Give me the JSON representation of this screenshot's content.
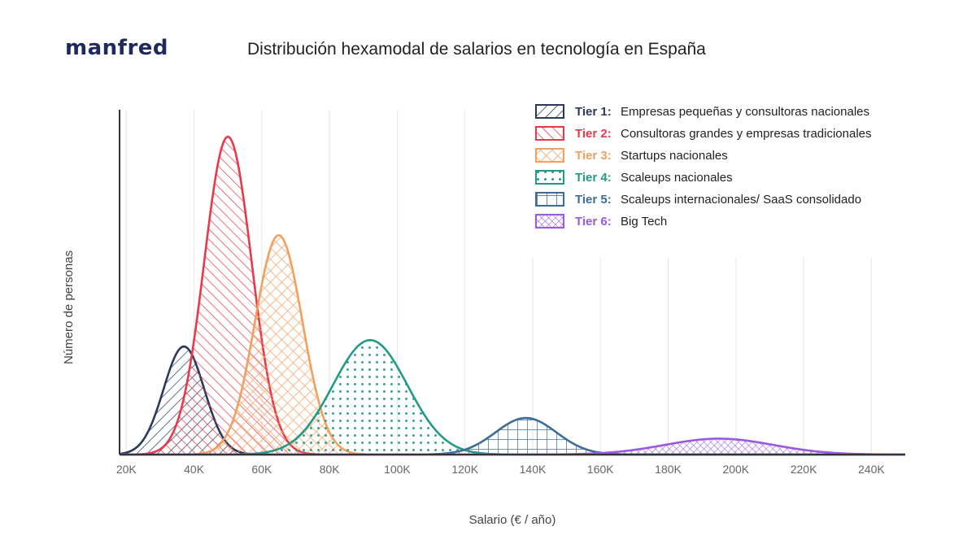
{
  "brand": {
    "logo_text": "manfred"
  },
  "chart_data": {
    "type": "area",
    "title": "Distribución hexamodal de salarios en tecnología en España",
    "xlabel": "Salario (€ / año)",
    "ylabel": "Número de personas",
    "xlim": [
      18000,
      250000
    ],
    "ylim": [
      0,
      100
    ],
    "x_ticks": [
      20000,
      40000,
      60000,
      80000,
      100000,
      120000,
      140000,
      160000,
      180000,
      200000,
      220000,
      240000
    ],
    "x_tick_labels": [
      "20K",
      "40K",
      "60K",
      "80K",
      "100K",
      "120K",
      "140K",
      "160K",
      "180K",
      "200K",
      "220K",
      "240K"
    ],
    "legend_position": "top-right",
    "series": [
      {
        "tier": "Tier 1:",
        "name": "Empresas pequeñas y consultoras nacionales",
        "mean": 37000,
        "sd": 6000,
        "peak": 34,
        "color": "#2a3a5e",
        "pattern": "diagonal-up"
      },
      {
        "tier": "Tier 2:",
        "name": "Consultoras grandes y empresas tradicionales",
        "mean": 50000,
        "sd": 7000,
        "peak": 100,
        "color": "#e8394a",
        "pattern": "diagonal-down"
      },
      {
        "tier": "Tier 3:",
        "name": "Startups nacionales",
        "mean": 65000,
        "sd": 7000,
        "peak": 69,
        "color": "#f3a05f",
        "pattern": "crosshatch"
      },
      {
        "tier": "Tier 4:",
        "name": "Scaleups nacionales",
        "mean": 92000,
        "sd": 11000,
        "peak": 36,
        "color": "#239a87",
        "pattern": "dots"
      },
      {
        "tier": "Tier 5:",
        "name": "Scaleups internacionales/ SaaS consolidado",
        "mean": 138000,
        "sd": 9000,
        "peak": 11.5,
        "color": "#3d6c97",
        "pattern": "grid"
      },
      {
        "tier": "Tier 6:",
        "name": "Big Tech",
        "mean": 195000,
        "sd": 16000,
        "peak": 5,
        "color": "#9b59e0",
        "pattern": "fine-crosshatch"
      }
    ]
  }
}
